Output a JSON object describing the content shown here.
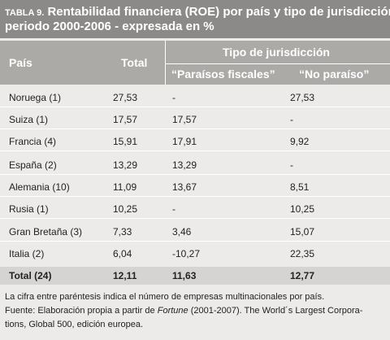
{
  "title": {
    "tag": "TABLA 9.",
    "line1_rest": " Rentabilidad financiera (ROE) por país y tipo de jurisdicción,",
    "line2": "periodo 2000-2006 - expresada en %"
  },
  "header": {
    "pais": "País",
    "total": "Total",
    "tipo": "Tipo de jurisdicción",
    "paraisos": "“Paraísos fiscales”",
    "no_paraiso": "“No paraíso”"
  },
  "rows": [
    {
      "pais": "Noruega (1)",
      "total": "27,53",
      "paraisos": "-",
      "no_paraiso": "27,53"
    },
    {
      "pais": "Suiza (1)",
      "total": "17,57",
      "paraisos": "17,57",
      "no_paraiso": "-"
    },
    {
      "pais": "Francia (4)",
      "total": "15,91",
      "paraisos": "17,91",
      "no_paraiso": "9,92"
    },
    {
      "pais": "España (2)",
      "total": "13,29",
      "paraisos": "13,29",
      "no_paraiso": "-"
    },
    {
      "pais": "Alemania (10)",
      "total": "11,09",
      "paraisos": "13,67",
      "no_paraiso": "8,51"
    },
    {
      "pais": "Rusia (1)",
      "total": "10,25",
      "paraisos": "-",
      "no_paraiso": "10,25"
    },
    {
      "pais": "Gran Bretaña (3)",
      "total": "7,33",
      "paraisos": "3,46",
      "no_paraiso": "15,07"
    },
    {
      "pais": "Italia (2)",
      "total": "6,04",
      "paraisos": "-10,27",
      "no_paraiso": "22,35"
    }
  ],
  "total_row": {
    "pais": "Total (24)",
    "total": "12,11",
    "paraisos": "11,63",
    "no_paraiso": "12,77"
  },
  "notes": {
    "line1": "La cifra entre paréntesis indica el número de empresas multinacionales por país.",
    "line2_pre": "Fuente: Elaboración propia a partir de ",
    "line2_ital": "Fortune",
    "line2_post": " (2001-2007). The World´s Largest Corpora-",
    "line3": "tions, Global 500, edición europea."
  }
}
